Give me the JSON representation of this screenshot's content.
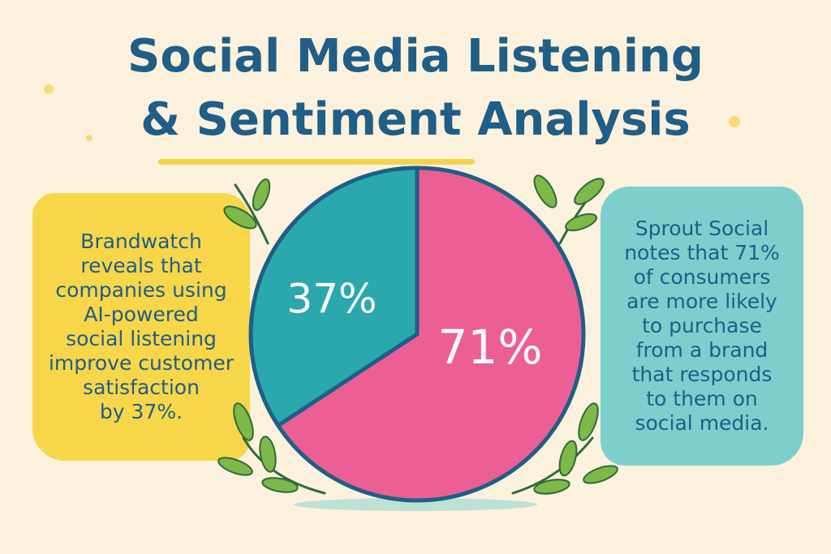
{
  "title": {
    "line1": "Social Media Listening",
    "line2": "& Sentiment Analysis"
  },
  "left_callout": {
    "lines": [
      "Brandwatch",
      "reveals that",
      "companies using",
      "AI-powered",
      "social listening",
      "improve customer",
      "satisfaction",
      "by 37%."
    ]
  },
  "right_callout": {
    "lines": [
      "Sprout Social",
      "notes that 71%",
      "of consumers",
      "are more likely",
      "to purchase",
      "from a brand",
      "that responds",
      "to them on",
      "social media."
    ]
  },
  "chart_data": {
    "type": "pie",
    "slices": [
      {
        "label": "37%",
        "value": 37,
        "color": "#2aa8ae"
      },
      {
        "label": "71%",
        "value": 71,
        "color": "#ec5f95"
      }
    ],
    "outline_color": "#1f5e86",
    "label_color": "#ffffff"
  },
  "colors": {
    "background": "#fbf1dc",
    "title": "#1f5e86",
    "left_callout_bg": "#f7d64a",
    "right_callout_bg": "#7ccfcd",
    "leaf": "#7db849"
  },
  "icons": [
    "leaf-branch-icon"
  ]
}
